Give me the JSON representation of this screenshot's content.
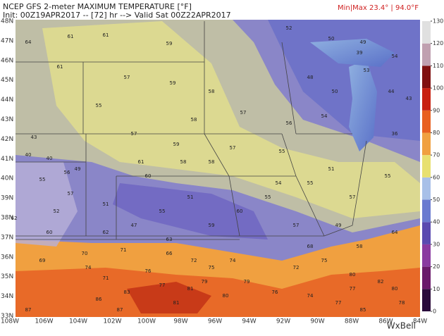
{
  "header": {
    "title": "NCEP GFS 2-meter MAXIMUM TEMPERATURE [°F]",
    "subtitle": "Init: 00Z19APR2017 -- [72] hr --> Valid Sat 00Z22APR2017",
    "minmax": "Min|Max 23.4° | 94.0°F",
    "brand": "WxBell"
  },
  "latitudes": [
    "48N",
    "47N",
    "46N",
    "45N",
    "44N",
    "43N",
    "42N",
    "41N",
    "40N",
    "39N",
    "38N",
    "37N",
    "36N",
    "35N",
    "34N",
    "33N"
  ],
  "longitudes": [
    "108W",
    "106W",
    "104W",
    "102W",
    "100W",
    "98W",
    "96W",
    "94W",
    "92W",
    "90W",
    "88W",
    "86W",
    "84W"
  ],
  "colorbar": {
    "lim": [
      0,
      130
    ],
    "ticks": [
      0,
      10,
      20,
      30,
      40,
      50,
      60,
      70,
      80,
      90,
      100,
      110,
      120,
      130
    ],
    "colors": [
      "#2a0a3a",
      "#6a1a6a",
      "#8a3aa0",
      "#5a4ab0",
      "#6a7ad0",
      "#a8c0e8",
      "#e8e070",
      "#f0a040",
      "#e86020",
      "#c82010",
      "#801010",
      "#c0a0b0",
      "#e0e0e0"
    ]
  },
  "stations": [
    61,
    64,
    61,
    59,
    61,
    57,
    55,
    59,
    52,
    50,
    49,
    53,
    54,
    39,
    44,
    50,
    48,
    36,
    40,
    43,
    43,
    55,
    57,
    58,
    57,
    56,
    54,
    51,
    55,
    59,
    58,
    61,
    57,
    57,
    56,
    52,
    55,
    58,
    59,
    60,
    55,
    51,
    55,
    40,
    49,
    54,
    58,
    60,
    55,
    57,
    51,
    47,
    57,
    49,
    62,
    60,
    64,
    69,
    70,
    71,
    66,
    74,
    71,
    76,
    72,
    75,
    74,
    81,
    77,
    86,
    87,
    83,
    79,
    72,
    75,
    80,
    82,
    80,
    77,
    77,
    85,
    78,
    74,
    76,
    80,
    79,
    81,
    87,
    68,
    62,
    58,
    63
  ]
}
